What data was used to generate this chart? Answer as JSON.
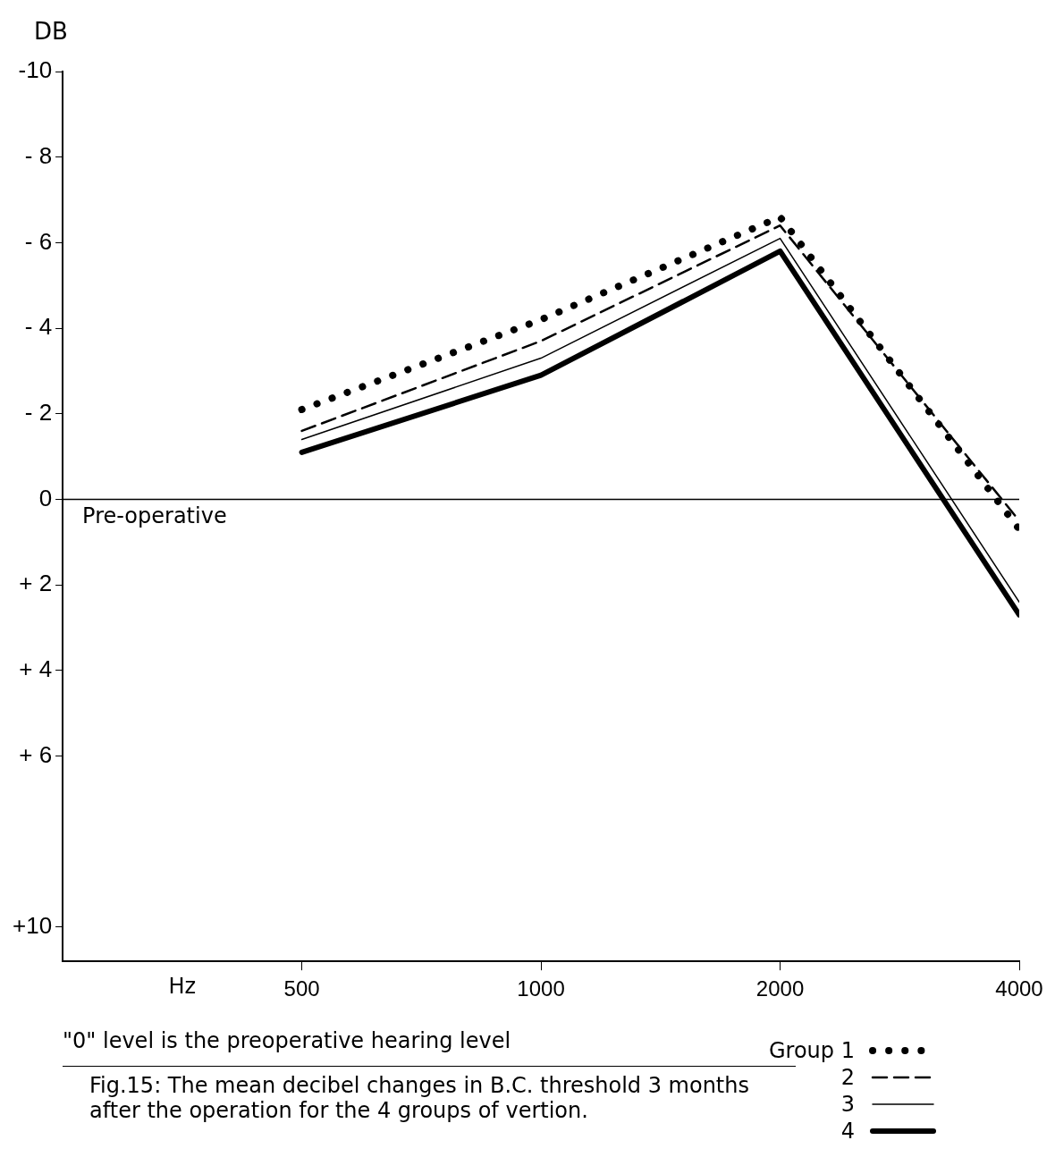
{
  "chart_data": {
    "type": "line",
    "ylabel": "DB",
    "xlabel": "Hz",
    "x": [
      500,
      1000,
      2000,
      4000
    ],
    "xlim": [
      250,
      4000
    ],
    "xticks": [
      500,
      1000,
      2000,
      4000
    ],
    "log": "x",
    "ylim": [
      10.8,
      -10
    ],
    "yticks": [
      -10,
      {
        "value": -8,
        "label": "- 8"
      },
      {
        "value": -6,
        "label": "- 6"
      },
      {
        "value": -4,
        "label": "- 4"
      },
      {
        "value": -2,
        "label": "- 2"
      },
      0,
      {
        "value": 2,
        "label": "+ 2"
      },
      {
        "value": 4,
        "label": "+ 4"
      },
      {
        "value": 6,
        "label": "+ 6"
      },
      {
        "value": 10,
        "label": "+10"
      }
    ],
    "grid": false,
    "marker": "none",
    "legend": "bottom right",
    "series": [
      {
        "name": "Group 1",
        "color": "#000000",
        "line_style": "dotted",
        "values": [
          -2.1,
          -4.2,
          -6.6,
          0.7
        ]
      },
      {
        "name": "2",
        "color": "#000000",
        "line_style": "dashed",
        "values": [
          -1.6,
          -3.7,
          -6.4,
          0.5
        ]
      },
      {
        "name": "3",
        "color": "#000000",
        "line_style": "solid",
        "values": [
          -1.4,
          -3.3,
          -6.1,
          2.4
        ]
      },
      {
        "name": "4",
        "color": "#000000",
        "line_style": "solid",
        "values": [
          -1.1,
          -2.9,
          -5.8,
          2.7
        ]
      }
    ],
    "ref_lines": [
      {
        "axis": "y",
        "value": 0,
        "label": "Pre-operative",
        "color": "#000000"
      }
    ],
    "annotations": [
      "\"0\" level is the preoperative hearing level",
      "Fig.15: The mean decibel changes in B.C. threshold 3 months after the operation for the 4 groups of vertion."
    ]
  }
}
